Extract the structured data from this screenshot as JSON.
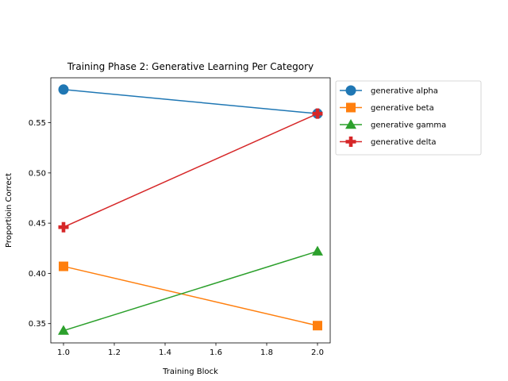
{
  "chart_data": {
    "type": "line",
    "title": "Training Phase 2: Generative Learning Per Category",
    "xlabel": "Training Block",
    "ylabel": "Proportioin Correct",
    "x": [
      1.0,
      2.0
    ],
    "xlim": [
      0.95,
      2.05
    ],
    "ylim": [
      0.3308,
      0.5947
    ],
    "xticks": [
      "1.0",
      "1.2",
      "1.4",
      "1.6",
      "1.8",
      "2.0"
    ],
    "yticks": [
      "0.35",
      "0.40",
      "0.45",
      "0.50",
      "0.55"
    ],
    "grid": false,
    "legend_position": "outside-right-top",
    "series": [
      {
        "name": "generative alpha",
        "values": [
          0.583,
          0.559
        ],
        "color": "#1f77b4",
        "marker": "circle"
      },
      {
        "name": "generative beta",
        "values": [
          0.407,
          0.348
        ],
        "color": "#ff7f0e",
        "marker": "square"
      },
      {
        "name": "generative gamma",
        "values": [
          0.343,
          0.422
        ],
        "color": "#2ca02c",
        "marker": "triangle"
      },
      {
        "name": "generative delta",
        "values": [
          0.446,
          0.559
        ],
        "color": "#d62728",
        "marker": "plus"
      }
    ]
  }
}
